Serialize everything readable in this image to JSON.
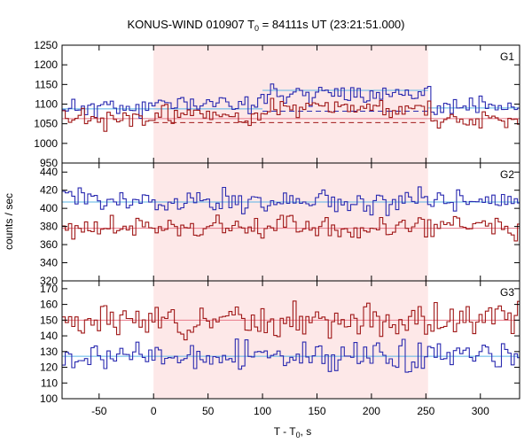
{
  "chart_data": {
    "type": "line",
    "title": "KONUS-WIND 010907 T",
    "title_sub": "0",
    "title_rest": " = 84111s UT (23:21:51.000)",
    "xlabel_main": "T - T",
    "xlabel_sub": "0",
    "xlabel_rest": ", s",
    "ylabel": "counts / sec",
    "xlim": [
      -84,
      336
    ],
    "xticks": [
      "-50",
      "0",
      "50",
      "100",
      "150",
      "200",
      "250",
      "300"
    ],
    "xtick_values": [
      -50,
      0,
      50,
      100,
      150,
      200,
      250,
      300
    ],
    "shaded_interval": [
      0,
      252
    ],
    "colors": {
      "shade": "#fde8e8",
      "blue": "#2a2ab0",
      "red": "#a01818",
      "blue_bg": "#5ab4e6",
      "red_bg": "#e87a8a",
      "frame": "#000000"
    },
    "panels": [
      {
        "name": "G1",
        "ylim": [
          950,
          1250
        ],
        "yticks": [
          "950",
          "1000",
          "1050",
          "1100",
          "1150",
          "1200",
          "1250"
        ],
        "ytick_values": [
          950,
          1000,
          1050,
          1100,
          1150,
          1200,
          1250
        ],
        "series": [
          {
            "color_key": "blue",
            "base": 1090,
            "amp": 22,
            "seed": 11,
            "bumps": [
              {
                "from": 0,
                "to": 252,
                "add": 12
              },
              {
                "from": 100,
                "to": 252,
                "add": 25
              }
            ]
          },
          {
            "color_key": "red",
            "base": 1060,
            "amp": 22,
            "seed": 23,
            "bumps": [
              {
                "from": 0,
                "to": 252,
                "add": 15
              },
              {
                "from": 100,
                "to": 252,
                "add": 15
              }
            ]
          }
        ],
        "bg": [
          {
            "color_key": "blue_bg",
            "segments": [
              {
                "from": -84,
                "to": 100,
                "y": 1088
              },
              {
                "from": 100,
                "to": 252,
                "y": 1135
              },
              {
                "from": 252,
                "to": 336,
                "y": 1090
              }
            ],
            "dashed": false
          },
          {
            "color_key": "red_bg",
            "segments": [
              {
                "from": -84,
                "to": 252,
                "y": 1063
              },
              {
                "from": 252,
                "to": 336,
                "y": 1063
              }
            ],
            "dashed": false
          },
          {
            "color_key": "blue",
            "segments": [
              {
                "from": 100,
                "to": 252,
                "y": 1082
              }
            ],
            "dashed": true
          },
          {
            "color_key": "red",
            "segments": [
              {
                "from": 0,
                "to": 252,
                "y": 1053
              }
            ],
            "dashed": true
          }
        ]
      },
      {
        "name": "G2",
        "ylim": [
          320,
          450
        ],
        "yticks": [
          "320",
          "340",
          "360",
          "380",
          "400",
          "420",
          "440"
        ],
        "ytick_values": [
          320,
          340,
          360,
          380,
          400,
          420,
          440
        ],
        "series": [
          {
            "color_key": "blue",
            "base": 408,
            "amp": 12,
            "seed": 37,
            "bumps": []
          },
          {
            "color_key": "red",
            "base": 378,
            "amp": 12,
            "seed": 41,
            "bumps": []
          }
        ],
        "bg": [
          {
            "color_key": "blue_bg",
            "segments": [
              {
                "from": -84,
                "to": 336,
                "y": 407
              }
            ],
            "dashed": false
          },
          {
            "color_key": "red_bg",
            "segments": [
              {
                "from": -84,
                "to": 336,
                "y": 378
              }
            ],
            "dashed": false
          }
        ]
      },
      {
        "name": "G3",
        "ylim": [
          100,
          175
        ],
        "yticks": [
          "100",
          "110",
          "120",
          "130",
          "140",
          "150",
          "160",
          "170"
        ],
        "ytick_values": [
          100,
          110,
          120,
          130,
          140,
          150,
          160,
          170
        ],
        "series": [
          {
            "color_key": "blue",
            "base": 127,
            "amp": 8,
            "seed": 53,
            "bumps": []
          },
          {
            "color_key": "red",
            "base": 150,
            "amp": 9,
            "seed": 67,
            "bumps": []
          }
        ],
        "bg": [
          {
            "color_key": "blue_bg",
            "segments": [
              {
                "from": -84,
                "to": 336,
                "y": 127
              }
            ],
            "dashed": false
          },
          {
            "color_key": "red_bg",
            "segments": [
              {
                "from": -84,
                "to": 336,
                "y": 150
              }
            ],
            "dashed": false
          }
        ]
      }
    ]
  }
}
